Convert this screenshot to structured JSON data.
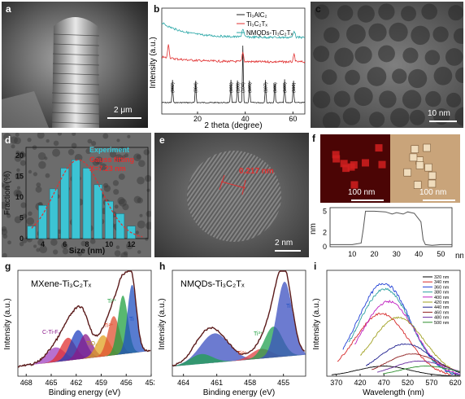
{
  "panels": {
    "a": {
      "label": "a",
      "scale_bar": "2 μm"
    },
    "b": {
      "label": "b",
      "xlabel": "2 theta (degree)",
      "ylabel": "Intensity (a.u.)",
      "xticks": [
        "20",
        "40",
        "60"
      ],
      "legend": [
        "Ti₃AlC₂",
        "Ti₃C₂Tₓ",
        "NMQDs-Ti₃C₂Tₓ"
      ],
      "peak_labels": [
        "(002)",
        "(004)",
        "(101)",
        "(103)",
        "(104)",
        "(105)",
        "(107)",
        "(108)",
        "(109)",
        "(110)"
      ]
    },
    "c": {
      "label": "c",
      "scale_bar": "10 nm"
    },
    "d": {
      "label": "d",
      "xlabel": "Size (nm)",
      "ylabel": "Fraction (%)",
      "legend_hist": "Experiment",
      "legend_fit": "Gauss fitting",
      "fit_value": "X=7.23 nm"
    },
    "e": {
      "label": "e",
      "lattice": "0.217 nm",
      "scale_bar": "2 nm"
    },
    "f": {
      "label": "f",
      "scale_bar_1": "100 nm",
      "scale_bar_2": "100 nm",
      "ylabel": "nm",
      "xunit": "nm"
    },
    "g": {
      "label": "g",
      "title": "MXene-Ti₃C₂Tₓ",
      "xlabel": "Binding energy (eV)",
      "ylabel": "Intensity (a.u.)",
      "annotations": [
        "C-Ti-Fₓ",
        "TiO₂",
        "Ti²⁺",
        "Ti³⁺",
        "Ti"
      ]
    },
    "h": {
      "label": "h",
      "title": "NMQDs-Ti₃C₂Tₓ",
      "xlabel": "Binding energy (eV)",
      "ylabel": "Intensity (a.u.)",
      "annotations": [
        "Ti",
        "Ti²⁺",
        "Ti³⁺"
      ]
    },
    "i": {
      "label": "i",
      "xlabel": "Wavelength (nm)",
      "ylabel": "Intensity (a.u.)",
      "legend": [
        "320 nm",
        "340 nm",
        "360 nm",
        "380 nm",
        "400 nm",
        "420 nm",
        "440 nm",
        "460 nm",
        "480 nm",
        "500 nm"
      ],
      "colors": [
        "#000000",
        "#d62728",
        "#1f3fd6",
        "#2ca0a0",
        "#c020c0",
        "#a0a020",
        "#1f1f8f",
        "#8f1f1f",
        "#6a2ca0",
        "#2c8f2c"
      ]
    }
  },
  "chart_data": [
    {
      "type": "line",
      "panel": "b",
      "xlabel": "2 theta (degree)",
      "ylabel": "Intensity (a.u.)",
      "xlim": [
        5,
        65
      ],
      "series": [
        {
          "name": "Ti₃AlC₂",
          "color": "#222222"
        },
        {
          "name": "Ti₃C₂Tₓ",
          "color": "#e03030"
        },
        {
          "name": "NMQDs-Ti₃C₂Tₓ",
          "color": "#2aa7a7"
        }
      ],
      "peaks_2theta": [
        9.5,
        19.2,
        34.0,
        36.8,
        39.0,
        41.8,
        48.5,
        52.4,
        56.5,
        60.2
      ]
    },
    {
      "type": "bar",
      "panel": "d",
      "xlabel": "Size (nm)",
      "ylabel": "Fraction (%)",
      "categories": [
        "3",
        "4",
        "5",
        "6",
        "7",
        "8",
        "9",
        "10",
        "11",
        "12"
      ],
      "values": [
        3,
        8,
        12,
        17,
        19,
        17,
        13,
        9,
        6,
        3
      ],
      "xticks": [
        4,
        6,
        8,
        10,
        12
      ],
      "yticks": [
        0,
        5,
        10,
        15,
        20
      ],
      "ylim": [
        0,
        22
      ]
    },
    {
      "type": "line",
      "panel": "f",
      "ylabel": "nm",
      "xlim": [
        0,
        55
      ],
      "ylim": [
        0,
        5.5
      ],
      "xticks": [
        10,
        20,
        30,
        40,
        50
      ],
      "yticks": [
        0,
        2,
        5
      ],
      "x": [
        0,
        5,
        10,
        14,
        15,
        16,
        20,
        25,
        28,
        30,
        33,
        35,
        38,
        41,
        42,
        43,
        46,
        50,
        55
      ],
      "values": [
        0.3,
        0.3,
        0.3,
        0.5,
        2.5,
        5.0,
        5.0,
        4.9,
        4.6,
        4.8,
        4.6,
        4.9,
        4.7,
        3.5,
        1.0,
        0.3,
        0.2,
        0.3,
        0.3
      ]
    },
    {
      "type": "line",
      "panel": "g",
      "xlabel": "Binding energy (eV)",
      "ylabel": "Intensity (a.u.)",
      "xticks": [
        468,
        465,
        462,
        459,
        456,
        453
      ],
      "xlim": [
        469,
        453
      ]
    },
    {
      "type": "line",
      "panel": "h",
      "xlabel": "Binding energy (eV)",
      "ylabel": "Intensity (a.u.)",
      "xticks": [
        464,
        461,
        458,
        455
      ],
      "xlim": [
        465,
        453
      ]
    },
    {
      "type": "line",
      "panel": "i",
      "xlabel": "Wavelength (nm)",
      "ylabel": "Intensity (a.u.)",
      "xticks": [
        370,
        420,
        470,
        520,
        570,
        620
      ],
      "xlim": [
        350,
        630
      ],
      "series": [
        {
          "name": "320 nm",
          "peak": 470,
          "height": 0.1
        },
        {
          "name": "340 nm",
          "peak": 465,
          "height": 0.62
        },
        {
          "name": "360 nm",
          "peak": 470,
          "height": 0.92
        },
        {
          "name": "380 nm",
          "peak": 472,
          "height": 0.86
        },
        {
          "name": "400 nm",
          "peak": 480,
          "height": 0.74
        },
        {
          "name": "420 nm",
          "peak": 500,
          "height": 0.58
        },
        {
          "name": "440 nm",
          "peak": 515,
          "height": 0.32
        },
        {
          "name": "460 nm",
          "peak": 530,
          "height": 0.22
        },
        {
          "name": "480 nm",
          "peak": 545,
          "height": 0.15
        },
        {
          "name": "500 nm",
          "peak": 560,
          "height": 0.1
        }
      ]
    }
  ]
}
